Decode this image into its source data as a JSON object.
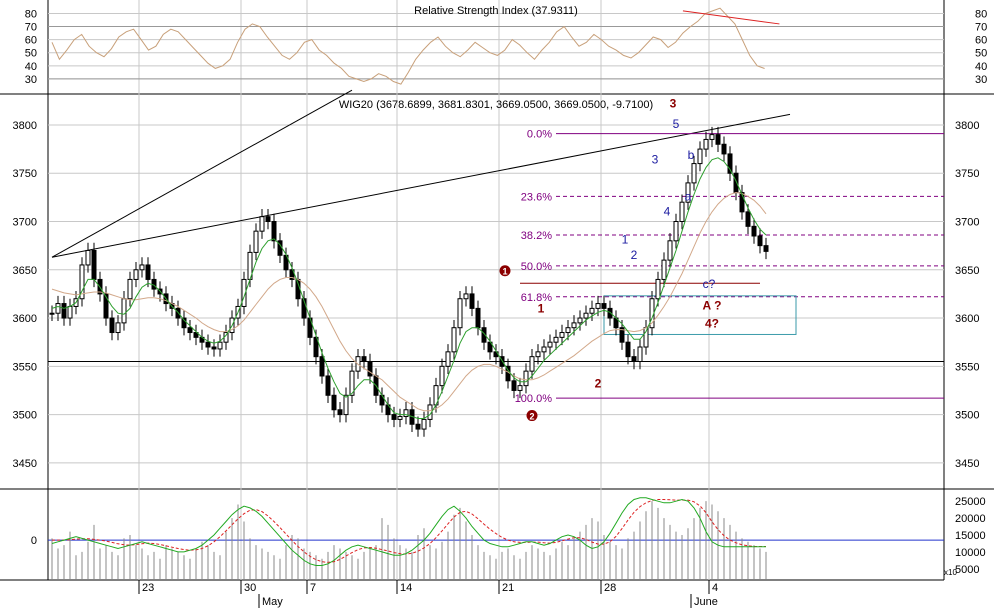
{
  "colors": {
    "background": "#ffffff",
    "grid": "#c8c8c8",
    "axis": "#000000",
    "candle": "#000000",
    "ma_short": "#2ea02e",
    "ma_long": "#d2a88a",
    "rsi_line": "#c8a07a",
    "fib_level": "#800080",
    "wave_red": "#8b0000",
    "wave_blue": "#1a1aa0",
    "box": "#3a9aaa",
    "macd_green": "#22aa22",
    "macd_signal": "#dd2222",
    "zero_line": "#2233cc",
    "volume": "#888888"
  },
  "chart_data": [
    {
      "id": "rsi",
      "type": "line",
      "title": "Relative Strength Index (37.9311)",
      "ylim": [
        20,
        88
      ],
      "yticks": [
        30,
        40,
        50,
        60,
        70,
        80
      ],
      "reference_lines": [
        30,
        70
      ],
      "series": [
        {
          "values": [
            58,
            45,
            52,
            60,
            64,
            55,
            50,
            47,
            53,
            62,
            66,
            68,
            60,
            52,
            55,
            64,
            68,
            66,
            60,
            54,
            48,
            42,
            38,
            40,
            45,
            58,
            68,
            72,
            70,
            62,
            55,
            48,
            45,
            50,
            58,
            60,
            52,
            48,
            42,
            38,
            32,
            30,
            28,
            30,
            34,
            32,
            28,
            26,
            35,
            45,
            52,
            58,
            62,
            55,
            50,
            47,
            52,
            58,
            54,
            50,
            48,
            52,
            60,
            56,
            50,
            45,
            52,
            58,
            66,
            70,
            62,
            55,
            58,
            64,
            60,
            55,
            52,
            48,
            46,
            50,
            56,
            62,
            60,
            54,
            58,
            65,
            70,
            74,
            80,
            82,
            84,
            78,
            72,
            60,
            48,
            40,
            37.93
          ]
        }
      ],
      "trend_line": {
        "from": [
          85,
          82
        ],
        "to": [
          98,
          72
        ]
      }
    },
    {
      "id": "price",
      "type": "candlestick",
      "title": "WIG20 (3678.6899, 3681.8301, 3669.0500, 3669.0500, -9.7100)",
      "ylim": [
        3425,
        3830
      ],
      "yticks": [
        3450,
        3500,
        3550,
        3600,
        3650,
        3700,
        3750,
        3800
      ],
      "x_tick_labels": [
        "23",
        "30",
        "7",
        "14",
        "21",
        "28",
        "4"
      ],
      "x_month_labels": [
        "May",
        "June"
      ],
      "close": [
        3605,
        3615,
        3600,
        3612,
        3620,
        3655,
        3670,
        3640,
        3625,
        3600,
        3585,
        3595,
        3620,
        3640,
        3650,
        3655,
        3640,
        3630,
        3625,
        3615,
        3610,
        3600,
        3590,
        3585,
        3580,
        3575,
        3570,
        3568,
        3575,
        3585,
        3600,
        3612,
        3640,
        3668,
        3690,
        3705,
        3700,
        3680,
        3665,
        3650,
        3640,
        3620,
        3600,
        3580,
        3560,
        3540,
        3520,
        3505,
        3500,
        3520,
        3545,
        3560,
        3555,
        3540,
        3520,
        3510,
        3500,
        3495,
        3498,
        3505,
        3490,
        3485,
        3495,
        3510,
        3530,
        3550,
        3565,
        3590,
        3620,
        3625,
        3610,
        3590,
        3575,
        3565,
        3560,
        3550,
        3535,
        3525,
        3530,
        3545,
        3560,
        3565,
        3570,
        3575,
        3580,
        3585,
        3590,
        3595,
        3600,
        3605,
        3610,
        3615,
        3610,
        3600,
        3590,
        3575,
        3560,
        3555,
        3570,
        3590,
        3620,
        3640,
        3660,
        3680,
        3700,
        3720,
        3740,
        3760,
        3775,
        3785,
        3790,
        3780,
        3770,
        3750,
        3730,
        3710,
        3695,
        3685,
        3675,
        3669.05
      ],
      "ma_short": [
        3610,
        3612,
        3610,
        3612,
        3616,
        3628,
        3640,
        3640,
        3632,
        3622,
        3612,
        3605,
        3604,
        3610,
        3622,
        3632,
        3636,
        3634,
        3628,
        3620,
        3612,
        3606,
        3598,
        3592,
        3586,
        3580,
        3576,
        3574,
        3576,
        3582,
        3592,
        3606,
        3622,
        3640,
        3658,
        3672,
        3680,
        3682,
        3676,
        3666,
        3652,
        3636,
        3618,
        3600,
        3582,
        3564,
        3548,
        3534,
        3522,
        3518,
        3522,
        3530,
        3536,
        3536,
        3530,
        3520,
        3510,
        3502,
        3500,
        3500,
        3498,
        3496,
        3496,
        3500,
        3510,
        3524,
        3540,
        3556,
        3574,
        3586,
        3590,
        3590,
        3584,
        3576,
        3566,
        3556,
        3546,
        3538,
        3534,
        3534,
        3540,
        3548,
        3556,
        3562,
        3568,
        3574,
        3580,
        3586,
        3592,
        3598,
        3602,
        3606,
        3608,
        3606,
        3600,
        3594,
        3586,
        3578,
        3578,
        3586,
        3600,
        3616,
        3634,
        3652,
        3670,
        3690,
        3710,
        3728,
        3744,
        3756,
        3764,
        3766,
        3762,
        3754,
        3742,
        3728,
        3714,
        3702,
        3692,
        3686
      ],
      "ma_long": [
        3630,
        3628,
        3626,
        3625,
        3624,
        3625,
        3626,
        3627,
        3627,
        3626,
        3624,
        3622,
        3620,
        3619,
        3619,
        3620,
        3621,
        3621,
        3620,
        3618,
        3615,
        3612,
        3608,
        3604,
        3600,
        3595,
        3591,
        3588,
        3586,
        3586,
        3588,
        3592,
        3598,
        3606,
        3614,
        3622,
        3630,
        3636,
        3640,
        3642,
        3642,
        3640,
        3636,
        3630,
        3622,
        3612,
        3600,
        3588,
        3576,
        3566,
        3558,
        3552,
        3548,
        3544,
        3540,
        3536,
        3530,
        3524,
        3518,
        3514,
        3510,
        3506,
        3504,
        3504,
        3506,
        3510,
        3516,
        3524,
        3532,
        3540,
        3546,
        3550,
        3552,
        3552,
        3550,
        3547,
        3544,
        3540,
        3537,
        3536,
        3536,
        3538,
        3541,
        3545,
        3549,
        3553,
        3557,
        3561,
        3566,
        3571,
        3576,
        3580,
        3584,
        3587,
        3588,
        3588,
        3587,
        3586,
        3587,
        3590,
        3595,
        3603,
        3612,
        3622,
        3634,
        3646,
        3660,
        3674,
        3688,
        3700,
        3710,
        3718,
        3724,
        3728,
        3730,
        3729,
        3726,
        3722,
        3716,
        3708
      ],
      "fib_levels": [
        {
          "label": "0.0%",
          "value": 3791
        },
        {
          "label": "23.6%",
          "value": 3726
        },
        {
          "label": "38.2%",
          "value": 3686
        },
        {
          "label": "50.0%",
          "value": 3654
        },
        {
          "label": "61.8%",
          "value": 3622
        },
        {
          "label": "100.0%",
          "value": 3517
        }
      ],
      "reference_line": 3555,
      "resistance_segment": {
        "from": [
          78,
          3636
        ],
        "to": [
          118,
          3636
        ]
      },
      "trend_lines": [
        {
          "from": [
            0,
            3663
          ],
          "to": [
            123,
            3811
          ]
        },
        {
          "from": [
            0,
            3663
          ],
          "to": [
            50,
            3836
          ]
        }
      ],
      "target_box": {
        "x": [
          92,
          124
        ],
        "y": [
          3583,
          3623
        ]
      },
      "wave_labels": [
        {
          "text": "1",
          "x": 81.5,
          "y": 3606,
          "color": "red"
        },
        {
          "text": "2",
          "x": 91,
          "y": 3528,
          "color": "red"
        },
        {
          "text": "3",
          "x": 103.5,
          "y": 3818,
          "color": "red"
        },
        {
          "text": "4?",
          "x": 110,
          "y": 3590,
          "color": "red"
        },
        {
          "text": "A ?",
          "x": 110,
          "y": 3609,
          "color": "red"
        },
        {
          "text": "1",
          "x": 95.5,
          "y": 3677,
          "color": "blue"
        },
        {
          "text": "2",
          "x": 97,
          "y": 3661,
          "color": "blue"
        },
        {
          "text": "3",
          "x": 100.5,
          "y": 3760,
          "color": "blue"
        },
        {
          "text": "4",
          "x": 102.5,
          "y": 3706,
          "color": "blue"
        },
        {
          "text": "5",
          "x": 104,
          "y": 3797,
          "color": "blue"
        },
        {
          "text": "a",
          "x": 106,
          "y": 3722,
          "color": "blue"
        },
        {
          "text": "b",
          "x": 106.5,
          "y": 3765,
          "color": "blue"
        },
        {
          "text": "c?",
          "x": 109.5,
          "y": 3631,
          "color": "blue"
        }
      ],
      "circle_markers": [
        {
          "text": "1",
          "x": 75.5,
          "y": 3649
        },
        {
          "text": "2",
          "x": 80,
          "y": 3499
        }
      ]
    },
    {
      "id": "volume",
      "type": "bar",
      "right_axis_ticks": [
        5000,
        10000,
        15000,
        20000,
        25000
      ],
      "unit_label": "x10",
      "left_axis_tick": "0",
      "ylim": [
        2000,
        28000
      ],
      "values": [
        14000,
        11000,
        12000,
        16000,
        9000,
        10000,
        13000,
        18000,
        11000,
        12000,
        10000,
        9000,
        14000,
        15000,
        12000,
        11000,
        9000,
        10000,
        8000,
        12000,
        11000,
        10000,
        9000,
        8000,
        11000,
        13000,
        12000,
        10000,
        9000,
        16000,
        20000,
        24000,
        19000,
        14000,
        12000,
        11000,
        10000,
        9000,
        8000,
        12000,
        15000,
        14000,
        11000,
        10000,
        9000,
        8000,
        10000,
        12000,
        11000,
        10000,
        9000,
        8000,
        10000,
        11000,
        12000,
        20000,
        18000,
        14000,
        12000,
        11000,
        10000,
        15000,
        17000,
        12000,
        11000,
        13000,
        16000,
        21000,
        23000,
        19000,
        15000,
        12000,
        10000,
        9000,
        8000,
        10000,
        11000,
        9000,
        8000,
        10000,
        12000,
        11000,
        10000,
        9000,
        11000,
        13000,
        12000,
        14000,
        16000,
        18000,
        20000,
        19000,
        15000,
        13000,
        12000,
        11000,
        14000,
        16000,
        19000,
        22000,
        25000,
        23000,
        20000,
        18000,
        16000,
        15000,
        17000,
        20000,
        23000,
        25000,
        24000,
        22000,
        20000,
        18000,
        16000,
        14000,
        13000,
        12000,
        11000,
        10000
      ],
      "macd": [
        12500,
        13000,
        13500,
        14000,
        14500,
        14000,
        13500,
        13000,
        12500,
        12000,
        11500,
        11000,
        11500,
        12000,
        12500,
        13000,
        12500,
        12000,
        11500,
        11000,
        10500,
        10000,
        10000,
        10500,
        11000,
        12000,
        13500,
        15000,
        17000,
        19000,
        21000,
        22500,
        23500,
        23000,
        22000,
        20500,
        18500,
        16500,
        14500,
        12500,
        10500,
        9000,
        7500,
        6500,
        6000,
        6000,
        6500,
        7500,
        9000,
        10500,
        11500,
        12000,
        11500,
        11000,
        10500,
        10000,
        9500,
        9000,
        9000,
        9500,
        10500,
        12000,
        13500,
        15500,
        18000,
        20500,
        22500,
        23500,
        22000,
        20000,
        17500,
        15500,
        13500,
        12500,
        12000,
        11500,
        11500,
        12000,
        12500,
        13000,
        13000,
        12500,
        12000,
        12500,
        13500,
        14500,
        15000,
        14500,
        13500,
        12000,
        11000,
        11500,
        13000,
        15500,
        18500,
        21500,
        24000,
        25500,
        26000,
        26000,
        25500,
        25000,
        24500,
        24500,
        25000,
        25500,
        25000,
        23000,
        20000,
        16000,
        13000,
        12000,
        11500,
        11500,
        11500,
        11500,
        11500,
        11500,
        11500,
        11500
      ],
      "signal": [
        13500,
        13500,
        13500,
        13600,
        13800,
        13900,
        13900,
        13700,
        13500,
        13200,
        12800,
        12400,
        12100,
        12000,
        12200,
        12400,
        12600,
        12500,
        12200,
        11800,
        11400,
        11000,
        10700,
        10500,
        10600,
        11000,
        11800,
        13000,
        14500,
        16200,
        18000,
        19800,
        21300,
        22300,
        22500,
        21900,
        20600,
        19000,
        17200,
        15300,
        13400,
        11600,
        10000,
        8700,
        7700,
        7100,
        6900,
        7100,
        7800,
        8800,
        9800,
        10700,
        11200,
        11300,
        11100,
        10700,
        10300,
        9800,
        9500,
        9400,
        9600,
        10200,
        11200,
        12500,
        14200,
        16200,
        18300,
        20300,
        21700,
        22000,
        21200,
        19800,
        18200,
        16700,
        15400,
        14300,
        13500,
        13000,
        12800,
        12800,
        12900,
        12900,
        12700,
        12600,
        12800,
        13300,
        13800,
        14200,
        14200,
        13700,
        12900,
        12300,
        12300,
        13000,
        14600,
        16900,
        19400,
        21700,
        23400,
        24500,
        25200,
        25500,
        25500,
        25400,
        25300,
        25300,
        25300,
        24800,
        23600,
        21600,
        18900,
        16600,
        14800,
        13500,
        12700,
        12100,
        11800,
        11600,
        11600,
        11600
      ]
    }
  ]
}
